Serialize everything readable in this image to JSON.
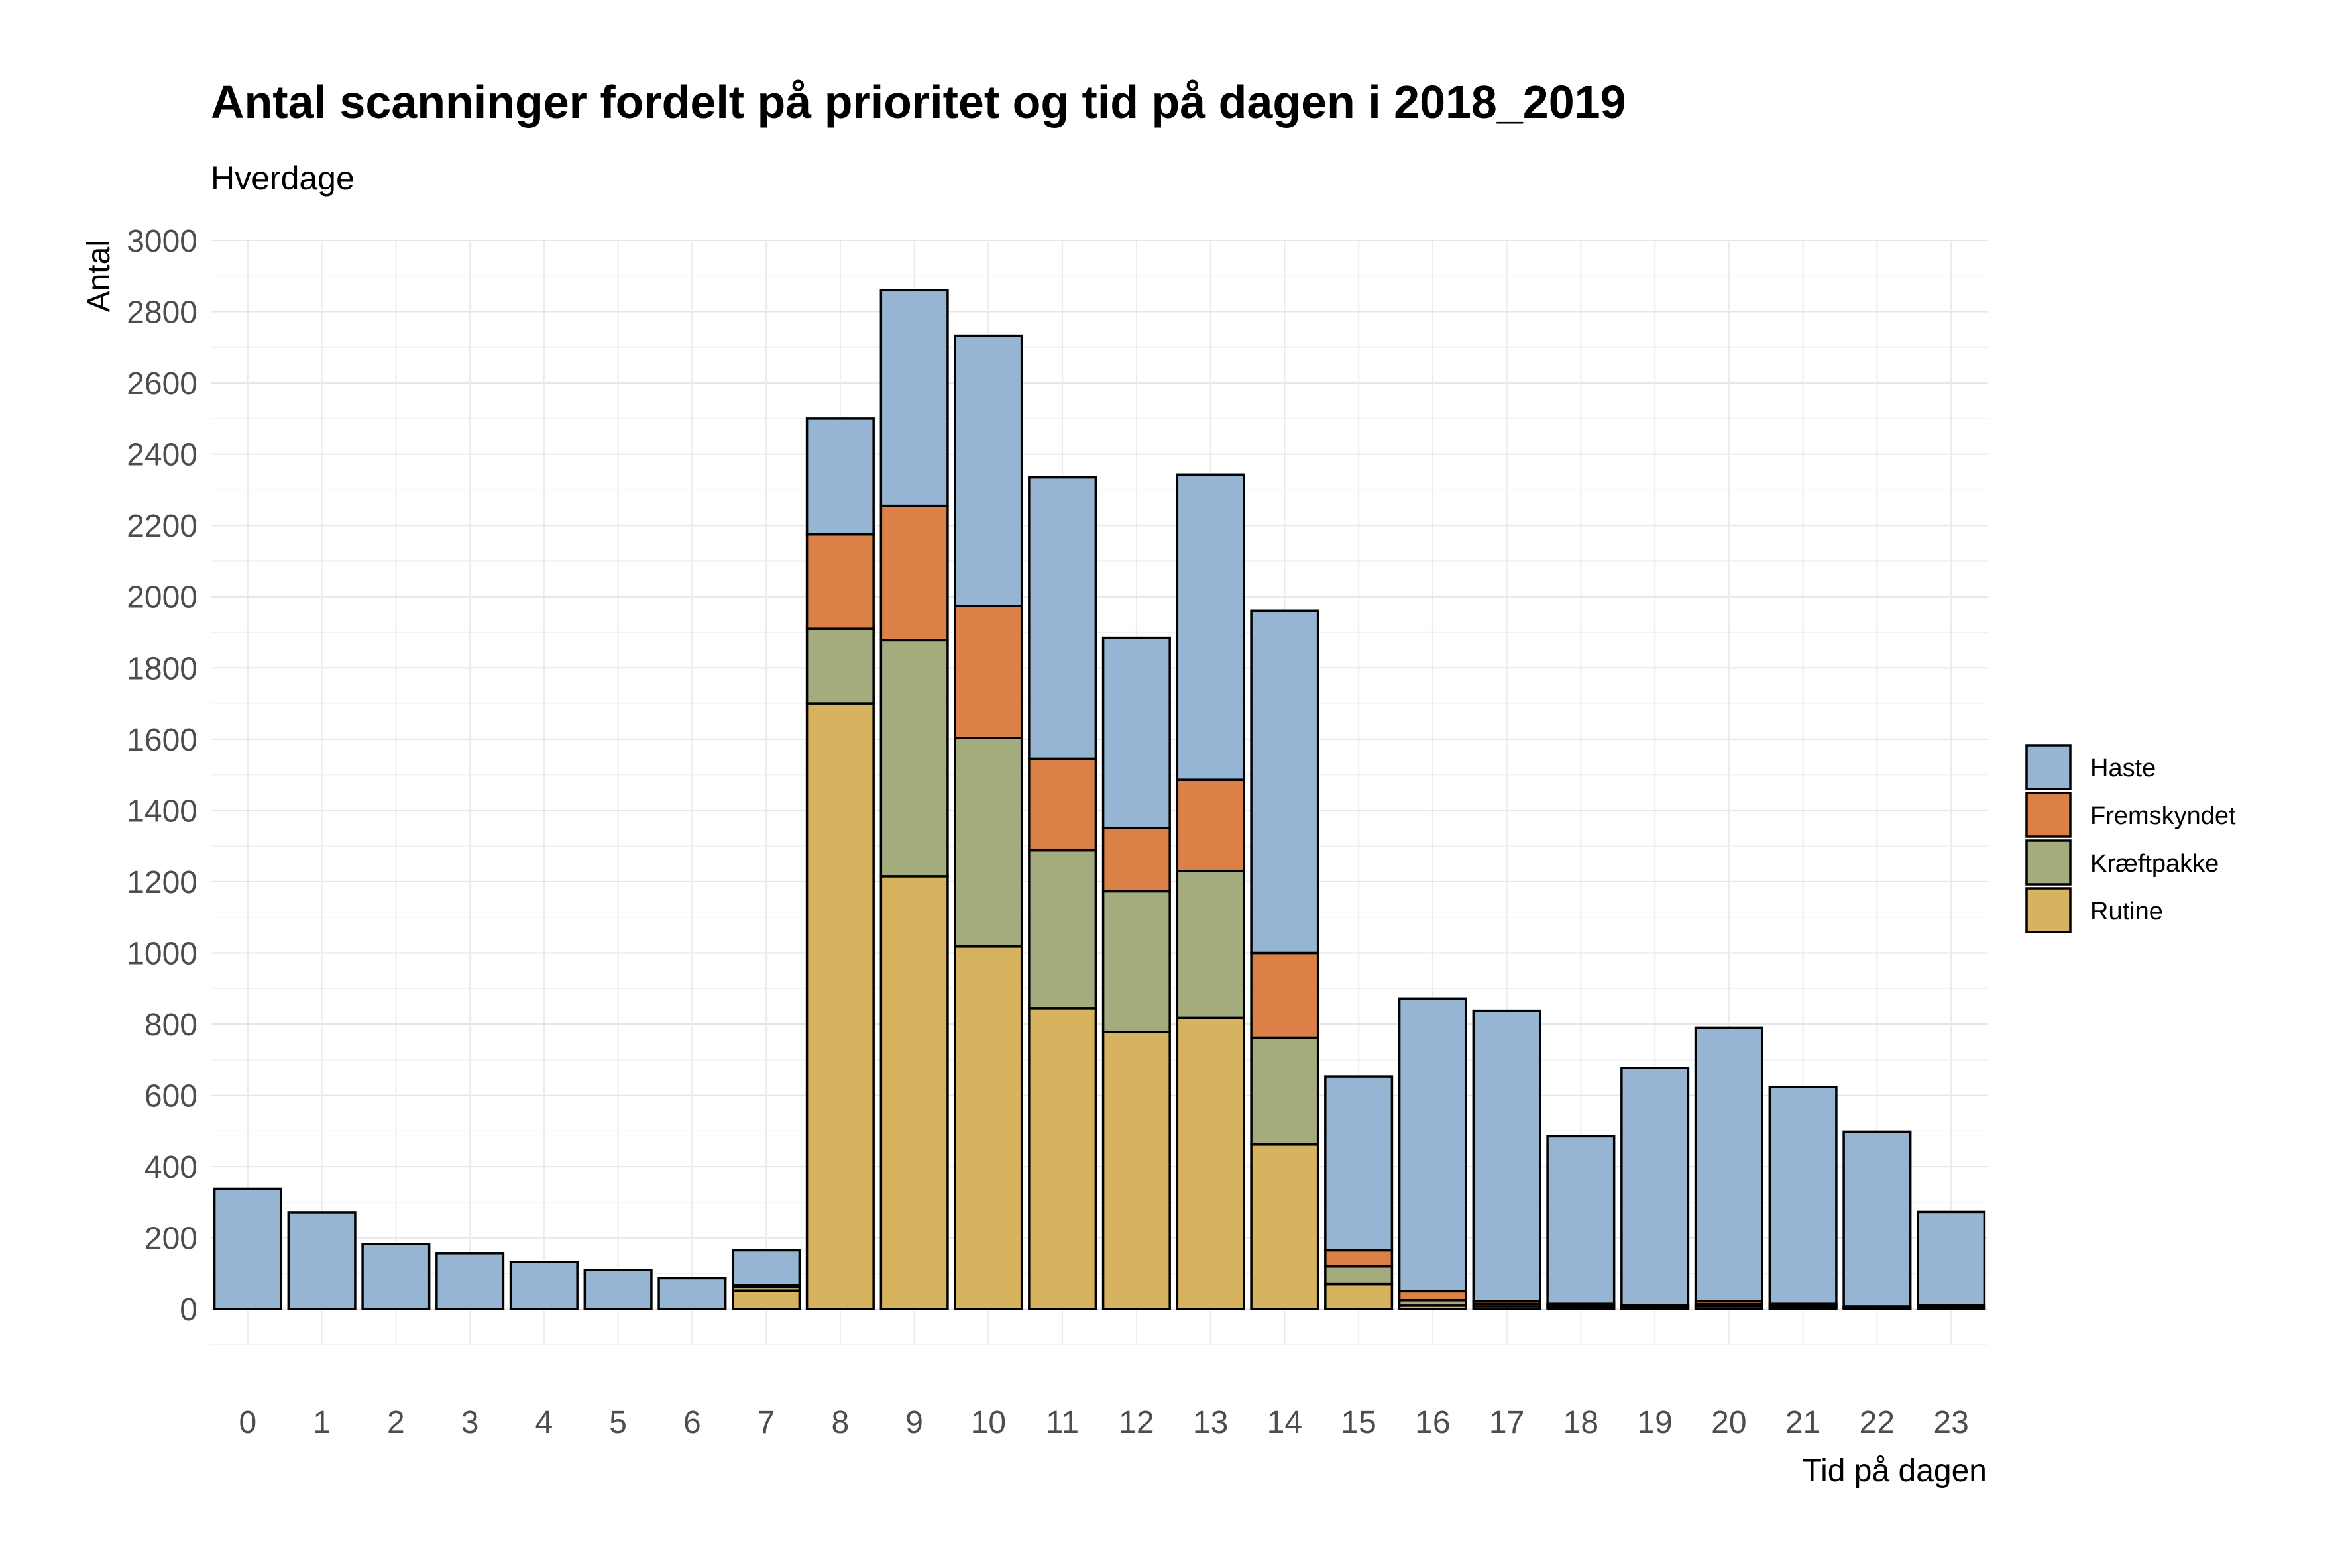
{
  "chart_data": {
    "type": "bar",
    "stacked": true,
    "title": "Antal scanninger fordelt på prioritet og tid på dagen i 2018_2019",
    "subtitle": "Hverdage",
    "xlabel": "Tid på dagen",
    "ylabel": "Antal",
    "ylim": [
      -100,
      3000
    ],
    "yticks": [
      0,
      200,
      400,
      600,
      800,
      1000,
      1200,
      1400,
      1600,
      1800,
      2000,
      2200,
      2400,
      2600,
      2800,
      3000
    ],
    "grid": true,
    "legend_position": "right",
    "categories": [
      "0",
      "1",
      "2",
      "3",
      "4",
      "5",
      "6",
      "7",
      "8",
      "9",
      "10",
      "11",
      "12",
      "13",
      "14",
      "15",
      "16",
      "17",
      "18",
      "19",
      "20",
      "21",
      "22",
      "23"
    ],
    "series": [
      {
        "name": "Rutine",
        "color": "#D8B35F",
        "values": [
          0,
          0,
          0,
          0,
          0,
          0,
          0,
          52,
          1700,
          1215,
          1018,
          845,
          778,
          818,
          462,
          70,
          10,
          8,
          6,
          5,
          8,
          5,
          3,
          5
        ]
      },
      {
        "name": "Kræftpakke",
        "color": "#A4AC7E",
        "values": [
          0,
          0,
          0,
          0,
          0,
          0,
          0,
          10,
          210,
          663,
          585,
          443,
          395,
          412,
          300,
          50,
          15,
          7,
          4,
          3,
          6,
          4,
          2,
          3
        ]
      },
      {
        "name": "Fremskyndet",
        "color": "#DB8148",
        "values": [
          0,
          0,
          0,
          0,
          0,
          0,
          0,
          5,
          265,
          377,
          370,
          257,
          177,
          256,
          238,
          45,
          25,
          8,
          5,
          4,
          8,
          6,
          3,
          3
        ]
      },
      {
        "name": "Haste",
        "color": "#96B5D3",
        "values": [
          338,
          272,
          183,
          157,
          132,
          110,
          87,
          98,
          325,
          605,
          760,
          790,
          535,
          857,
          960,
          488,
          822,
          815,
          470,
          665,
          768,
          608,
          490,
          262
        ]
      }
    ],
    "legend_order": [
      "Haste",
      "Fremskyndet",
      "Kræftpakke",
      "Rutine"
    ]
  }
}
